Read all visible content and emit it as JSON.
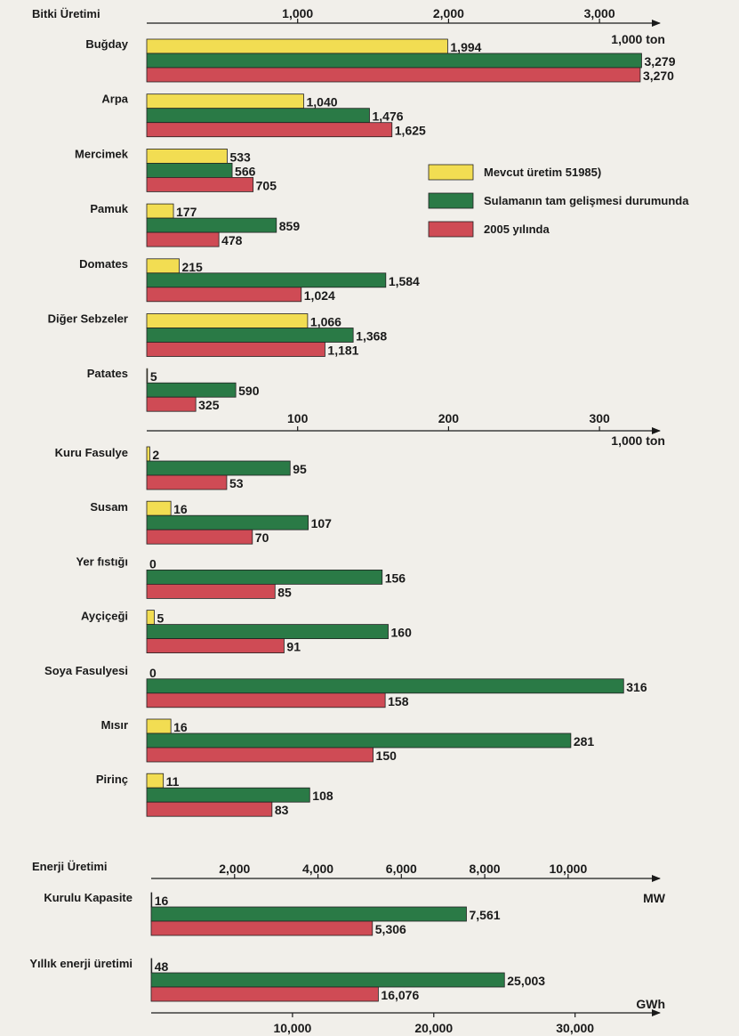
{
  "colors": {
    "current": "#f2dd52",
    "irrigation": "#2a7a46",
    "y2005": "#cf4b55",
    "axis": "#1a1a1a",
    "background": "#f1efea"
  },
  "legend": {
    "placement": "right",
    "items": [
      {
        "key": "current",
        "label": "Mevcut üretim 51985)"
      },
      {
        "key": "irrigation",
        "label": "Sulamanın tam gelişmesi durumunda"
      },
      {
        "key": "y2005",
        "label": "2005 yılında"
      }
    ]
  },
  "chart_data": [
    {
      "type": "bar",
      "orientation": "horizontal",
      "title": "Bitki Üretimi",
      "unit": "1,000 ton",
      "xlim": [
        0,
        3400
      ],
      "ticks": [
        1000,
        2000,
        3000
      ],
      "tick_labels": [
        "1,000",
        "2,000",
        "3,000"
      ],
      "categories": [
        "Buğday",
        "Arpa",
        "Mercimek",
        "Pamuk",
        "Domates",
        "Diğer Sebzeler",
        "Patates"
      ],
      "series": [
        {
          "key": "current",
          "labels": [
            "1,994",
            "1,040",
            "533",
            "177",
            "215",
            "1,066",
            "5"
          ],
          "values": [
            1994,
            1040,
            533,
            177,
            215,
            1066,
            5
          ]
        },
        {
          "key": "irrigation",
          "labels": [
            "3,279",
            "1,476",
            "566",
            "859",
            "1,584",
            "1,368",
            "590"
          ],
          "values": [
            3279,
            1476,
            566,
            859,
            1584,
            1368,
            590
          ]
        },
        {
          "key": "y2005",
          "labels": [
            "3,270",
            "1,625",
            "705",
            "478",
            "1,024",
            "1,181",
            "325"
          ],
          "values": [
            3270,
            1625,
            705,
            478,
            1024,
            1181,
            325
          ]
        }
      ]
    },
    {
      "type": "bar",
      "orientation": "horizontal",
      "title": "",
      "unit": "1,000 ton",
      "xlim": [
        0,
        340
      ],
      "ticks": [
        100,
        200,
        300
      ],
      "tick_labels": [
        "100",
        "200",
        "300"
      ],
      "categories": [
        "Kuru Fasulye",
        "Susam",
        "Yer fıstığı",
        "Ayçiçeği",
        "Soya Fasulyesi",
        "Mısır",
        "Pirinç"
      ],
      "series": [
        {
          "key": "current",
          "labels": [
            "2",
            "16",
            "0",
            "5",
            "0",
            "16",
            "11"
          ],
          "values": [
            2,
            16,
            0,
            5,
            0,
            16,
            11
          ]
        },
        {
          "key": "irrigation",
          "labels": [
            "95",
            "107",
            "156",
            "160",
            "316",
            "281",
            "108"
          ],
          "values": [
            95,
            107,
            156,
            160,
            316,
            281,
            108
          ]
        },
        {
          "key": "y2005",
          "labels": [
            "53",
            "70",
            "85",
            "91",
            "158",
            "150",
            "83"
          ],
          "values": [
            53,
            70,
            85,
            91,
            158,
            150,
            83
          ]
        }
      ]
    },
    {
      "type": "bar",
      "orientation": "horizontal",
      "title": "Enerji Üretimi",
      "unit": "MW",
      "xlim": [
        0,
        12200
      ],
      "ticks": [
        2000,
        4000,
        6000,
        8000,
        10000
      ],
      "tick_labels": [
        "2,000",
        "4,000",
        "6,000",
        "8,000",
        "10,000"
      ],
      "categories": [
        "Kurulu Kapasite"
      ],
      "series": [
        {
          "key": "current",
          "labels": [
            "16"
          ],
          "values": [
            16
          ]
        },
        {
          "key": "irrigation",
          "labels": [
            "7,561"
          ],
          "values": [
            7561
          ]
        },
        {
          "key": "y2005",
          "labels": [
            "5,306"
          ],
          "values": [
            5306
          ]
        }
      ]
    },
    {
      "type": "bar",
      "orientation": "horizontal",
      "title": "",
      "unit": "GWh",
      "xlim": [
        0,
        36000
      ],
      "ticks": [
        10000,
        20000,
        30000
      ],
      "tick_labels": [
        "10,000",
        "20,000",
        "30,000"
      ],
      "categories": [
        "Yıllık enerji üretimi"
      ],
      "series": [
        {
          "key": "current",
          "labels": [
            "48"
          ],
          "values": [
            48
          ]
        },
        {
          "key": "irrigation",
          "labels": [
            "25,003"
          ],
          "values": [
            25003
          ]
        },
        {
          "key": "y2005",
          "labels": [
            "16,076"
          ],
          "values": [
            16076
          ]
        }
      ]
    }
  ]
}
